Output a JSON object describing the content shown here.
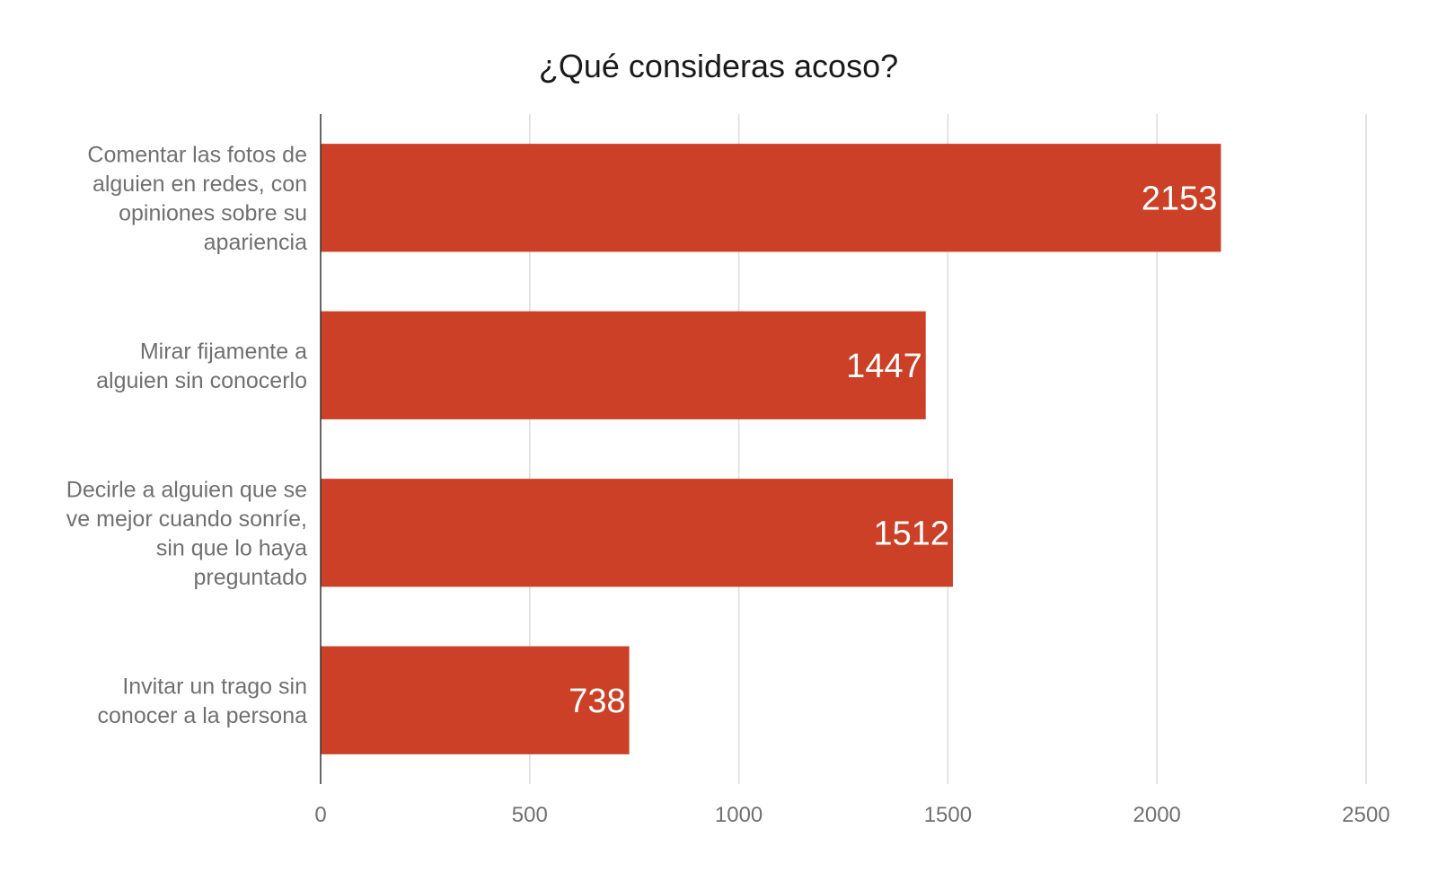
{
  "chart_data": {
    "type": "bar",
    "orientation": "horizontal",
    "title": "¿Qué consideras acoso?",
    "xlabel": "",
    "ylabel": "",
    "categories": [
      [
        "Comentar las fotos de",
        "alguien en redes, con",
        "opiniones sobre su",
        "apariencia"
      ],
      [
        "Mirar fijamente a",
        "alguien sin conocerlo"
      ],
      [
        "Decirle a alguien que se",
        "ve mejor cuando sonríe,",
        "sin que lo haya",
        "preguntado"
      ],
      [
        "Invitar un trago sin",
        "conocer a la persona"
      ]
    ],
    "values": [
      2153,
      1447,
      1512,
      738
    ],
    "data_labels": [
      "2153",
      "1447",
      "1512",
      "738"
    ],
    "xlim": [
      0,
      2500
    ],
    "xticks": [
      0,
      500,
      1000,
      1500,
      2000,
      2500
    ],
    "xtick_labels": [
      "0",
      "500",
      "1000",
      "1500",
      "2000",
      "2500"
    ],
    "grid": true,
    "legend": "none",
    "bar_color": "#cb4026"
  }
}
